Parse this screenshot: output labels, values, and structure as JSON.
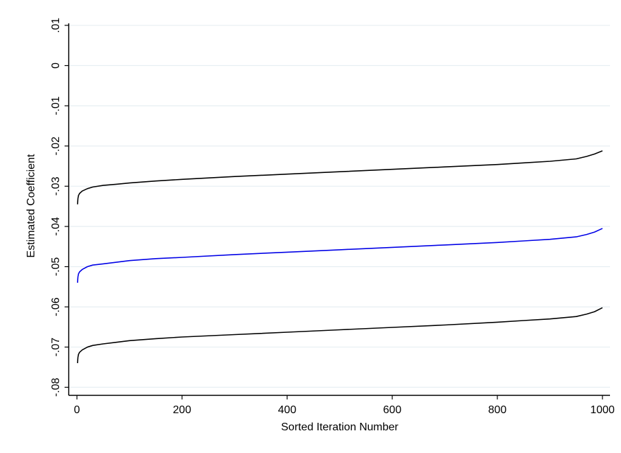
{
  "chart_data": {
    "type": "line",
    "xlabel": "Sorted Iteration Number",
    "ylabel": "Estimated Coefficient",
    "xlim": [
      0,
      1000
    ],
    "ylim": [
      -0.082,
      0.0105
    ],
    "x_ticks": [
      0,
      200,
      400,
      600,
      800,
      1000
    ],
    "x_tick_labels": [
      "0",
      "200",
      "400",
      "600",
      "800",
      "1000"
    ],
    "y_ticks": [
      0.01,
      0,
      -0.01,
      -0.02,
      -0.03,
      -0.04,
      -0.05,
      -0.06,
      -0.07,
      -0.08
    ],
    "y_tick_labels": [
      ".01",
      "0",
      "-.01",
      "-.02",
      "-.03",
      "-.04",
      "-.05",
      "-.06",
      "-.07",
      "-.08"
    ],
    "grid": true,
    "series": [
      {
        "color": "#000000",
        "x": [
          1,
          2,
          3,
          5,
          10,
          20,
          30,
          50,
          75,
          100,
          150,
          200,
          300,
          400,
          500,
          600,
          700,
          800,
          850,
          900,
          950,
          970,
          985,
          1000
        ],
        "y": [
          -0.0345,
          -0.033,
          -0.0323,
          -0.0318,
          -0.0312,
          -0.0306,
          -0.0302,
          -0.0298,
          -0.0295,
          -0.0292,
          -0.0287,
          -0.0283,
          -0.0276,
          -0.027,
          -0.0264,
          -0.0258,
          -0.0252,
          -0.0246,
          -0.0242,
          -0.0238,
          -0.0232,
          -0.0226,
          -0.022,
          -0.0212
        ]
      },
      {
        "color": "#0000e6",
        "x": [
          1,
          2,
          3,
          5,
          10,
          20,
          30,
          50,
          75,
          100,
          150,
          200,
          300,
          400,
          500,
          600,
          700,
          800,
          850,
          900,
          950,
          970,
          985,
          1000
        ],
        "y": [
          -0.054,
          -0.0525,
          -0.0518,
          -0.0513,
          -0.0507,
          -0.05,
          -0.0496,
          -0.0493,
          -0.0489,
          -0.0485,
          -0.048,
          -0.0477,
          -0.047,
          -0.0464,
          -0.0458,
          -0.0452,
          -0.0446,
          -0.044,
          -0.0436,
          -0.0432,
          -0.0426,
          -0.042,
          -0.0414,
          -0.0405
        ]
      },
      {
        "color": "#000000",
        "x": [
          1,
          2,
          3,
          5,
          10,
          20,
          30,
          50,
          75,
          100,
          150,
          200,
          300,
          400,
          500,
          600,
          700,
          800,
          850,
          900,
          950,
          970,
          985,
          1000
        ],
        "y": [
          -0.074,
          -0.0725,
          -0.0718,
          -0.0713,
          -0.0707,
          -0.07,
          -0.0696,
          -0.0692,
          -0.0688,
          -0.0684,
          -0.0679,
          -0.0675,
          -0.0669,
          -0.0663,
          -0.0657,
          -0.0651,
          -0.0645,
          -0.0638,
          -0.0634,
          -0.063,
          -0.0624,
          -0.0618,
          -0.0612,
          -0.0602
        ]
      }
    ]
  }
}
